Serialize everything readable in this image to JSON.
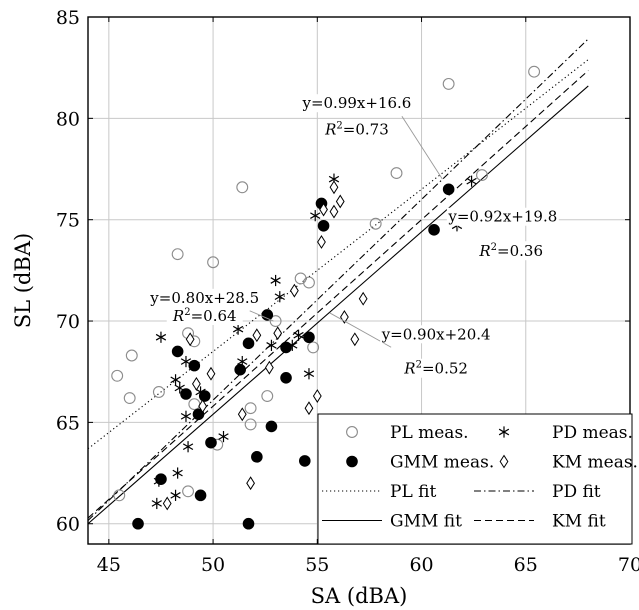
{
  "chart_data": {
    "type": "scatter",
    "xlabel": "SA (dBA)",
    "ylabel": "SL (dBA)",
    "xlim": [
      44,
      70
    ],
    "ylim": [
      59,
      85
    ],
    "xticks": [
      "45",
      "50",
      "55",
      "60",
      "65",
      "70"
    ],
    "yticks": [
      "60",
      "65",
      "70",
      "75",
      "80",
      "85"
    ],
    "grid": true,
    "legend_position": "bottom-right",
    "series": [
      {
        "name": "PL meas.",
        "marker": "circle-open",
        "color": "#8c8c8c",
        "points": [
          [
            45.4,
            67.3
          ],
          [
            46.0,
            66.2
          ],
          [
            46.1,
            68.3
          ],
          [
            45.5,
            61.4
          ],
          [
            47.4,
            66.5
          ],
          [
            48.3,
            73.3
          ],
          [
            48.8,
            69.4
          ],
          [
            49.1,
            69.0
          ],
          [
            49.1,
            65.9
          ],
          [
            48.8,
            61.6
          ],
          [
            50.0,
            72.9
          ],
          [
            50.2,
            63.9
          ],
          [
            51.4,
            76.6
          ],
          [
            51.8,
            65.7
          ],
          [
            51.8,
            64.9
          ],
          [
            52.6,
            66.3
          ],
          [
            53.0,
            70.0
          ],
          [
            54.2,
            72.1
          ],
          [
            54.6,
            71.9
          ],
          [
            54.8,
            68.7
          ],
          [
            57.8,
            74.8
          ],
          [
            58.8,
            77.3
          ],
          [
            61.3,
            81.7
          ],
          [
            62.9,
            77.2
          ],
          [
            65.4,
            82.3
          ]
        ]
      },
      {
        "name": "PD meas.",
        "marker": "asterisk",
        "color": "#000000",
        "points": [
          [
            47.5,
            69.2
          ],
          [
            48.2,
            67.1
          ],
          [
            48.4,
            66.7
          ],
          [
            48.7,
            68.0
          ],
          [
            48.7,
            65.3
          ],
          [
            48.8,
            63.8
          ],
          [
            49.4,
            66.5
          ],
          [
            48.3,
            62.5
          ],
          [
            48.2,
            61.4
          ],
          [
            47.4,
            62.1
          ],
          [
            47.3,
            61.0
          ],
          [
            50.5,
            64.3
          ],
          [
            51.2,
            69.6
          ],
          [
            51.4,
            68.0
          ],
          [
            52.8,
            68.8
          ],
          [
            53.2,
            71.2
          ],
          [
            53.0,
            72.0
          ],
          [
            53.8,
            68.8
          ],
          [
            54.1,
            69.3
          ],
          [
            54.6,
            67.4
          ],
          [
            54.9,
            75.2
          ],
          [
            55.8,
            77.0
          ],
          [
            61.7,
            74.7
          ],
          [
            62.4,
            76.9
          ]
        ]
      },
      {
        "name": "GMM meas.",
        "marker": "circle-filled",
        "color": "#000000",
        "points": [
          [
            46.4,
            60.0
          ],
          [
            47.5,
            62.2
          ],
          [
            48.3,
            68.5
          ],
          [
            48.7,
            66.4
          ],
          [
            49.1,
            67.8
          ],
          [
            49.3,
            65.4
          ],
          [
            49.6,
            66.3
          ],
          [
            49.4,
            61.4
          ],
          [
            49.9,
            64.0
          ],
          [
            51.3,
            67.6
          ],
          [
            51.7,
            68.9
          ],
          [
            51.7,
            60.0
          ],
          [
            52.1,
            63.3
          ],
          [
            52.6,
            70.3
          ],
          [
            52.8,
            64.8
          ],
          [
            53.5,
            67.2
          ],
          [
            53.5,
            68.7
          ],
          [
            54.4,
            63.1
          ],
          [
            54.6,
            69.2
          ],
          [
            55.2,
            75.8
          ],
          [
            55.3,
            74.7
          ],
          [
            60.6,
            74.5
          ],
          [
            61.3,
            76.5
          ]
        ]
      },
      {
        "name": "KM meas.",
        "marker": "diamond-open",
        "color": "#000000",
        "points": [
          [
            47.8,
            61.0
          ],
          [
            48.9,
            69.1
          ],
          [
            49.2,
            66.9
          ],
          [
            49.5,
            65.8
          ],
          [
            49.9,
            67.4
          ],
          [
            51.4,
            65.4
          ],
          [
            51.8,
            62.0
          ],
          [
            52.1,
            69.3
          ],
          [
            52.7,
            67.7
          ],
          [
            53.1,
            69.4
          ],
          [
            53.9,
            71.5
          ],
          [
            54.6,
            65.7
          ],
          [
            55.0,
            66.3
          ],
          [
            55.2,
            73.9
          ],
          [
            55.3,
            75.5
          ],
          [
            55.8,
            75.4
          ],
          [
            55.8,
            76.6
          ],
          [
            56.1,
            75.9
          ],
          [
            56.3,
            70.2
          ],
          [
            56.8,
            69.1
          ],
          [
            57.2,
            71.1
          ]
        ]
      }
    ],
    "fits": [
      {
        "name": "PL fit",
        "style": "dotted",
        "slope": 0.8,
        "intercept": 28.5,
        "xrange": [
          44,
          68
        ]
      },
      {
        "name": "PD fit",
        "style": "dashdot",
        "slope": 0.99,
        "intercept": 16.6,
        "xrange": [
          44,
          68
        ]
      },
      {
        "name": "GMM fit",
        "style": "solid",
        "slope": 0.9,
        "intercept": 20.4,
        "xrange": [
          44,
          68
        ]
      },
      {
        "name": "KM fit",
        "style": "dashed",
        "slope": 0.92,
        "intercept": 19.8,
        "xrange": [
          44,
          68
        ]
      }
    ],
    "annotations": [
      {
        "equation": "y=0.99x+16.6",
        "r2": "0.73",
        "text_at": [
          56.9,
          80.5
        ],
        "r2_at": [
          56.9,
          79.2
        ],
        "pointer_to": [
          61.0,
          77.0
        ]
      },
      {
        "equation": "y=0.92x+19.8",
        "r2": "0.36",
        "text_at": [
          63.9,
          74.9
        ],
        "r2_at": [
          64.3,
          73.2
        ],
        "pointer_to": [
          61.7,
          75.1
        ]
      },
      {
        "equation": "y=0.80x+28.5",
        "r2": "0.64",
        "text_at": [
          49.6,
          70.9
        ],
        "r2_at": [
          49.6,
          70.0
        ],
        "pointer_to": [
          52.9,
          70.0
        ]
      },
      {
        "equation": "y=0.90x+20.4",
        "r2": "0.52",
        "text_at": [
          60.7,
          69.1
        ],
        "r2_at": [
          60.7,
          67.4
        ],
        "pointer_to": [
          55.6,
          70.4
        ]
      }
    ],
    "annotation_r2_prefix": "R",
    "annotation_r2_exponent": "2",
    "annotation_r2_equals": "=",
    "legend": {
      "entries": [
        "PL meas.",
        "PD meas.",
        "GMM meas.",
        "KM meas.",
        "PL fit",
        "PD fit",
        "GMM fit",
        "KM fit"
      ]
    }
  }
}
